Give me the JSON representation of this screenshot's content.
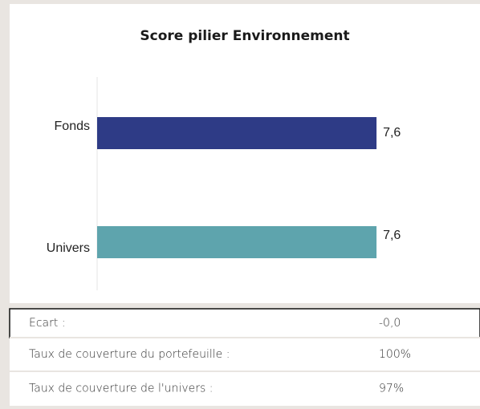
{
  "chart_data": {
    "type": "hbar",
    "title": "Score pilier Environnement",
    "categories": [
      "Fonds",
      "Univers"
    ],
    "values": [
      7.6,
      7.6
    ],
    "value_labels": [
      "7,6",
      "7,6"
    ],
    "colors": [
      "#2e3b86",
      "#5ea4ad"
    ],
    "xlim": [
      0,
      10
    ]
  },
  "table": {
    "rows": [
      [
        "Ecart :",
        "-0,0"
      ],
      [
        "Taux de couverture du portefeuille :",
        "100%"
      ],
      [
        "Taux de couverture de l'univers :",
        "97%"
      ]
    ]
  }
}
